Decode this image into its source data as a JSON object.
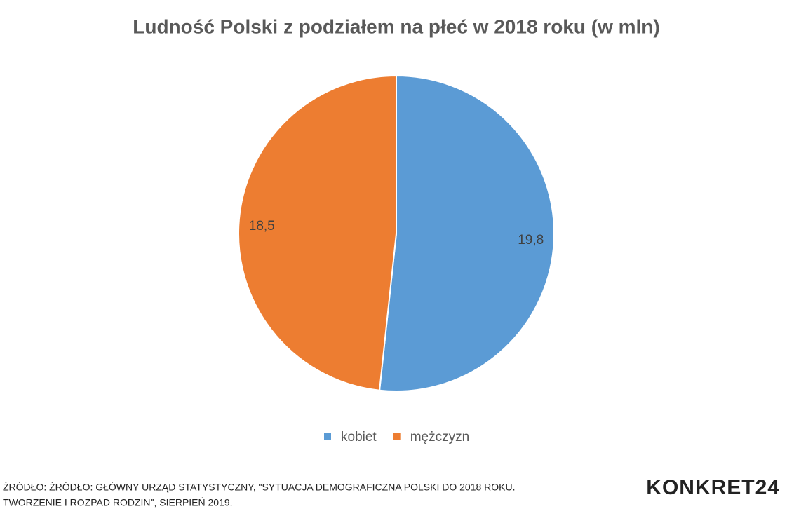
{
  "chart_data": {
    "type": "pie",
    "title": "Ludność Polski z podziałem na płeć w 2018 roku (w mln)",
    "categories": [
      "kobiet",
      "mężczyzn"
    ],
    "values": [
      19.8,
      18.5
    ],
    "value_labels": [
      "19,8",
      "18,5"
    ],
    "colors": [
      "#5b9bd5",
      "#ed7d31"
    ]
  },
  "source": [
    "ŹRÓDŁO: ŹRÓDŁO: GŁÓWNY URZĄD STATYSTYCZNY, \"SYTUACJA DEMOGRAFICZNA POLSKI DO 2018 ROKU.",
    "TWORZENIE I ROZPAD RODZIN\", SIERPIEŃ 2019."
  ],
  "logo": "KONKRET24"
}
